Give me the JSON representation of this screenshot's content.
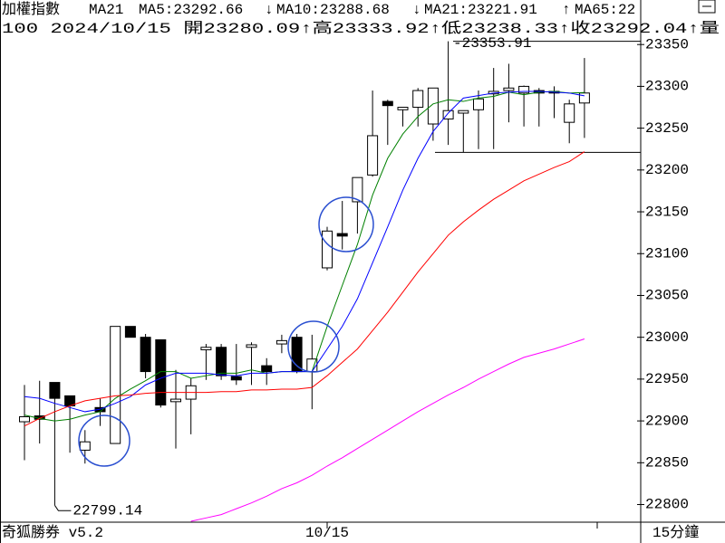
{
  "chart_data": {
    "type": "candlestick",
    "title": "加權指數",
    "indicator": "MA21",
    "info_line": "100 2024/10/15 開23280.09↑高23333.92↑低23238.33↑收23292.04↑量",
    "footer_left": "奇狐勝券 v5.2",
    "footer_right": "15分鐘",
    "categories": [
      null,
      null,
      null,
      null,
      null,
      null,
      null,
      null,
      null,
      null,
      null,
      null,
      null,
      null,
      null,
      null,
      null,
      null,
      null,
      null,
      "10/15",
      null,
      null,
      null,
      null,
      null,
      null,
      null,
      null,
      null,
      null,
      null,
      null,
      null,
      null,
      null,
      null,
      null
    ],
    "candles": {
      "up_color": "#ffffff",
      "down_color": "#000000",
      "open": [
        22899,
        22906,
        22946,
        22930,
        22865,
        22916,
        22873,
        23013,
        23000,
        22997,
        22923,
        22926,
        22985,
        22988,
        22953,
        22988,
        22966,
        22992,
        23000,
        22959,
        23083,
        23124,
        23162,
        23194,
        23282,
        23272,
        23275,
        23255,
        23261,
        23268,
        23272,
        23291,
        23295,
        23292,
        23295,
        23294,
        23257,
        23280.09
      ],
      "high": [
        22943,
        22948,
        22946,
        22930,
        22889,
        22927,
        23013,
        23013,
        23004,
        22997,
        22961,
        22951,
        22992,
        22992,
        22992,
        22994,
        22975,
        23003,
        23004,
        23003,
        23132,
        23163,
        23191,
        23295,
        23284,
        23275,
        23298,
        23298,
        23353.91,
        23271,
        23295,
        23322,
        23327,
        23301,
        23298,
        23300,
        23284,
        23333.92
      ],
      "low": [
        22853,
        22873,
        22799.14,
        22862,
        22849,
        22894,
        22873,
        23000,
        22951,
        22916,
        22867,
        22884,
        22949,
        22949,
        22943,
        22943,
        22943,
        22981,
        22957,
        22914,
        23080,
        23105,
        23124,
        23192,
        23230,
        23252,
        23252,
        23235,
        23230,
        23221,
        23225,
        23225,
        23257,
        23252,
        23252,
        23262,
        23232,
        23238.33
      ],
      "close": [
        22905,
        22902,
        22927,
        22918,
        22875,
        22911,
        23013,
        23000,
        22959,
        22919,
        22926,
        22942,
        22988,
        22954,
        22949,
        22991,
        22959,
        22996,
        22959,
        22974,
        23127,
        23121,
        23191,
        23241,
        23277,
        23275,
        23295,
        23298,
        23271,
        23271,
        23285,
        23294,
        23298,
        23300,
        23292,
        23292,
        23279,
        23292.04
      ]
    },
    "series": [
      {
        "name": "MA5:23292.66",
        "arrow": "↓",
        "color": "#008000",
        "values": [
          22907,
          22903,
          22900,
          22902,
          22907,
          22911,
          22927,
          22938,
          22948,
          22959,
          22959,
          22951,
          22954,
          22957,
          22957,
          22961,
          22957,
          22959,
          22959,
          22959,
          23013,
          23062,
          23111,
          23170,
          23214,
          23243,
          23264,
          23279,
          23284,
          23282,
          23286,
          23288,
          23293,
          23290,
          23293,
          23294,
          23292,
          23292.66
        ]
      },
      {
        "name": "MA10:23288.68",
        "arrow": "↓",
        "color": "#0000ff",
        "values": [
          22929,
          22927,
          22921,
          22916,
          22911,
          22914,
          22921,
          22929,
          22943,
          22951,
          22957,
          22957,
          22957,
          22955,
          22954,
          22957,
          22957,
          22959,
          22959,
          22959,
          22986,
          23013,
          23046,
          23089,
          23132,
          23176,
          23214,
          23246,
          23268,
          23286,
          23289,
          23292,
          23293,
          23294,
          23294,
          23293,
          23292,
          23288.68
        ]
      },
      {
        "name": "MA21:23221.91",
        "arrow": "↑",
        "color": "#ff0000",
        "values": [
          22894,
          22903,
          22911,
          22918,
          22924,
          22927,
          22930,
          22931,
          22933,
          22934,
          22934,
          22934,
          22934,
          22935,
          22935,
          22937,
          22937,
          22938,
          22938,
          22940,
          22954,
          22970,
          22986,
          23008,
          23030,
          23054,
          23078,
          23100,
          23122,
          23138,
          23152,
          23165,
          23176,
          23187,
          23195,
          23203,
          23210,
          23221.91
        ]
      },
      {
        "name": "MA65:22",
        "color": "#ff00ff",
        "values": [
          null,
          null,
          null,
          null,
          null,
          null,
          null,
          null,
          null,
          null,
          null,
          22780,
          22784,
          22788,
          22795,
          22802,
          22810,
          22819,
          22826,
          22835,
          22846,
          22856,
          22867,
          22878,
          22889,
          22900,
          22911,
          22921,
          22931,
          22940,
          22950,
          22959,
          22968,
          22976,
          22981,
          22986,
          22992,
          22998
        ]
      }
    ],
    "annotations": [
      {
        "label": "-23353.91",
        "value": 23353.91
      },
      {
        "label": "22799.14",
        "value": 22799.14
      }
    ],
    "range_lines": [
      23353.91,
      23221
    ],
    "ylim": [
      22780,
      23400
    ],
    "yticks": [
      22800,
      22850,
      22900,
      22950,
      23000,
      23050,
      23100,
      23150,
      23200,
      23250,
      23300,
      23350
    ]
  }
}
